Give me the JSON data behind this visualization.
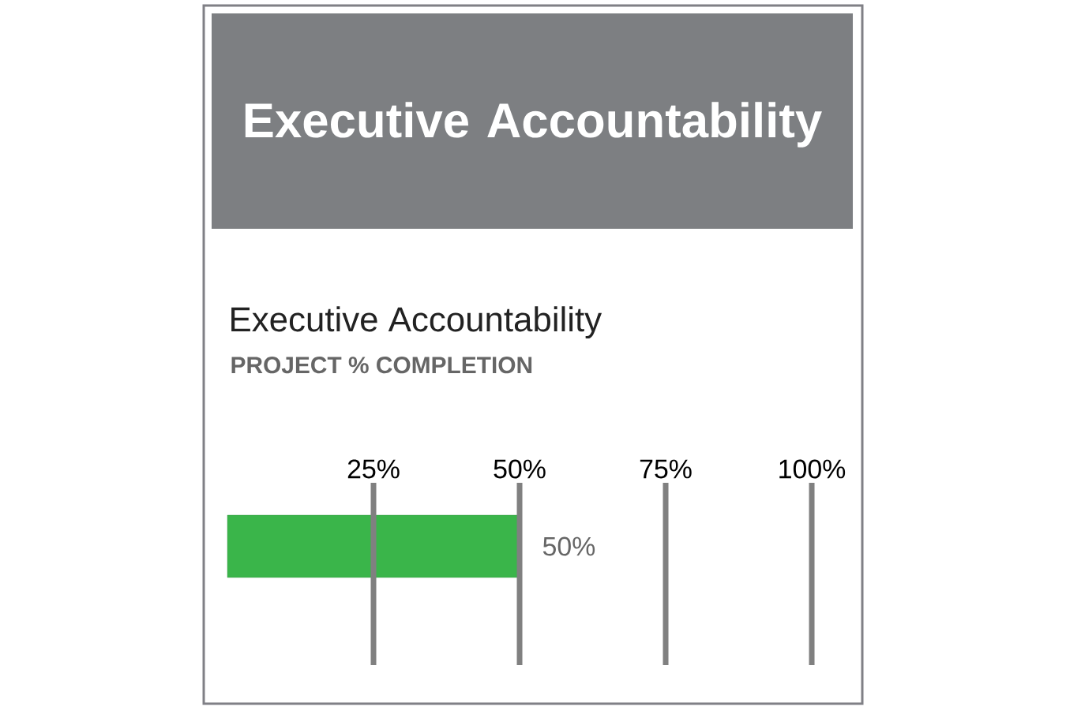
{
  "chart_data": {
    "type": "bar",
    "orientation": "horizontal",
    "title": "Executive Accountability",
    "subtitle": "Executive Accountability",
    "annotations": [
      "PROJECT % COMPLETION"
    ],
    "categories": [
      null
    ],
    "values": [
      50
    ],
    "color": "#3ab54a",
    "value_labels": [
      "50%"
    ],
    "xlim": [
      0,
      100
    ],
    "xticks": [
      {
        "value": 25,
        "label": "25%"
      },
      {
        "value": 50,
        "label": "50%"
      },
      {
        "value": 75,
        "label": "75%"
      },
      {
        "value": 100,
        "label": "100%"
      }
    ],
    "grid": "x",
    "tick_labels": "x"
  }
}
